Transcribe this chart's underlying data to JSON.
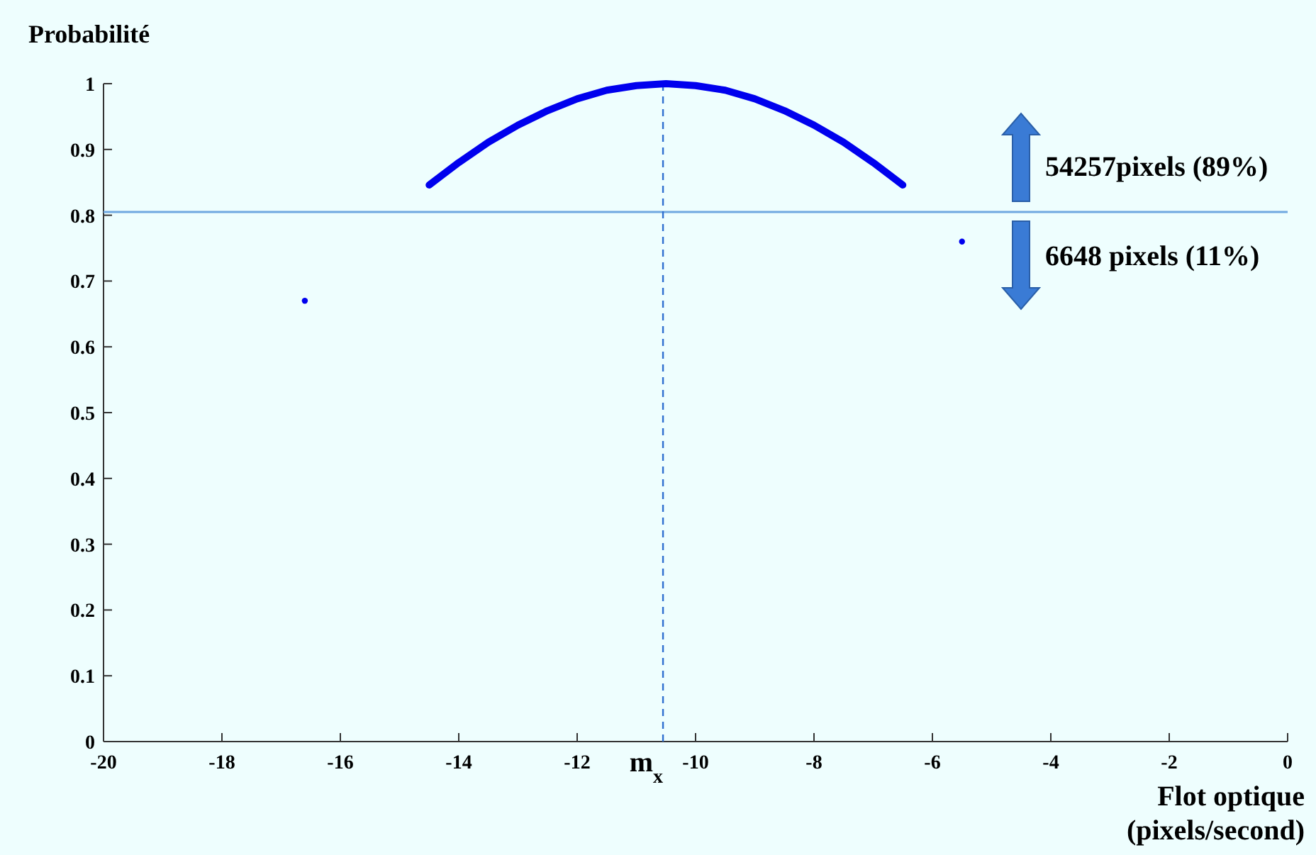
{
  "chart_data": {
    "type": "scatter",
    "ylabel": "Probabilité",
    "xlabel": "Flot optique\n(pixels/second)",
    "xlim": [
      -20,
      0
    ],
    "ylim": [
      0,
      1
    ],
    "xticks": [
      -20,
      -18,
      -16,
      -14,
      -12,
      -10,
      -8,
      -6,
      -4,
      -2,
      0
    ],
    "yticks": [
      0,
      0.1,
      0.2,
      0.3,
      0.4,
      0.5,
      0.6,
      0.7,
      0.8,
      0.9,
      1
    ],
    "grid": false,
    "series": [
      {
        "type": "line",
        "color": "#0000ee",
        "x": [
          -14.5,
          -14,
          -13.5,
          -13,
          -12.5,
          -12,
          -11.5,
          -11,
          -10.5,
          -10,
          -9.5,
          -9,
          -8.5,
          -8,
          -7.5,
          -7,
          -6.5
        ],
        "values": [
          0.846,
          0.88,
          0.911,
          0.937,
          0.959,
          0.977,
          0.99,
          0.997,
          1,
          0.997,
          0.99,
          0.977,
          0.959,
          0.937,
          0.911,
          0.88,
          0.846
        ]
      },
      {
        "color": "#0000ee",
        "marker": "circle",
        "x": [
          -16.6,
          -5.5
        ],
        "values": [
          0.67,
          0.76
        ]
      }
    ],
    "ref_lines": [
      {
        "axis": "y",
        "value": 0.805,
        "color": "#6fa8e0",
        "line_style": "solid"
      },
      {
        "axis": "x",
        "value": -10.55,
        "label": "m$_{x}$",
        "color": "#2f6fd0",
        "line_style": "dashed"
      }
    ],
    "annotations": [
      "54257pixels (89%)",
      "6648 pixels (11%)"
    ]
  }
}
